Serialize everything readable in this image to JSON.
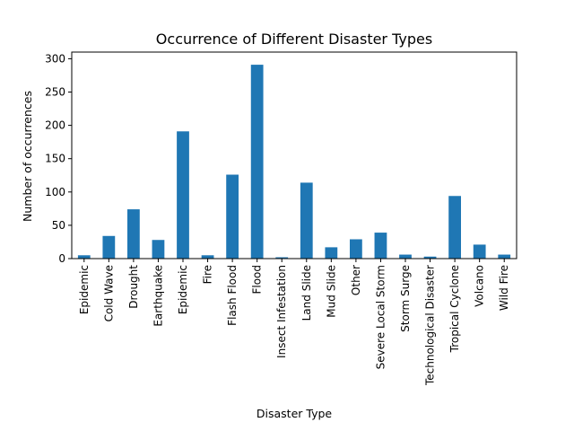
{
  "chart_data": {
    "type": "bar",
    "title": "Occurrence of Different Disaster Types",
    "xlabel": "Disaster Type",
    "ylabel": "Number of occurrences",
    "ylim": [
      0,
      310
    ],
    "yticks": [
      0,
      50,
      100,
      150,
      200,
      250,
      300
    ],
    "grid": false,
    "bar_color": "#1f77b4",
    "categories": [
      "Epidemic",
      "Cold Wave",
      "Drought",
      "Earthquake",
      "Epidemic",
      "Fire",
      "Flash Flood",
      "Flood",
      "Insect Infestation",
      "Land Slide",
      "Mud Slide",
      "Other",
      "Severe Local Storm",
      "Storm Surge",
      "Technological Disaster",
      "Tropical Cyclone",
      "Volcano",
      "Wild Fire"
    ],
    "values": [
      5,
      34,
      74,
      28,
      191,
      5,
      126,
      291,
      2,
      114,
      17,
      29,
      39,
      6,
      3,
      94,
      21,
      6
    ]
  }
}
